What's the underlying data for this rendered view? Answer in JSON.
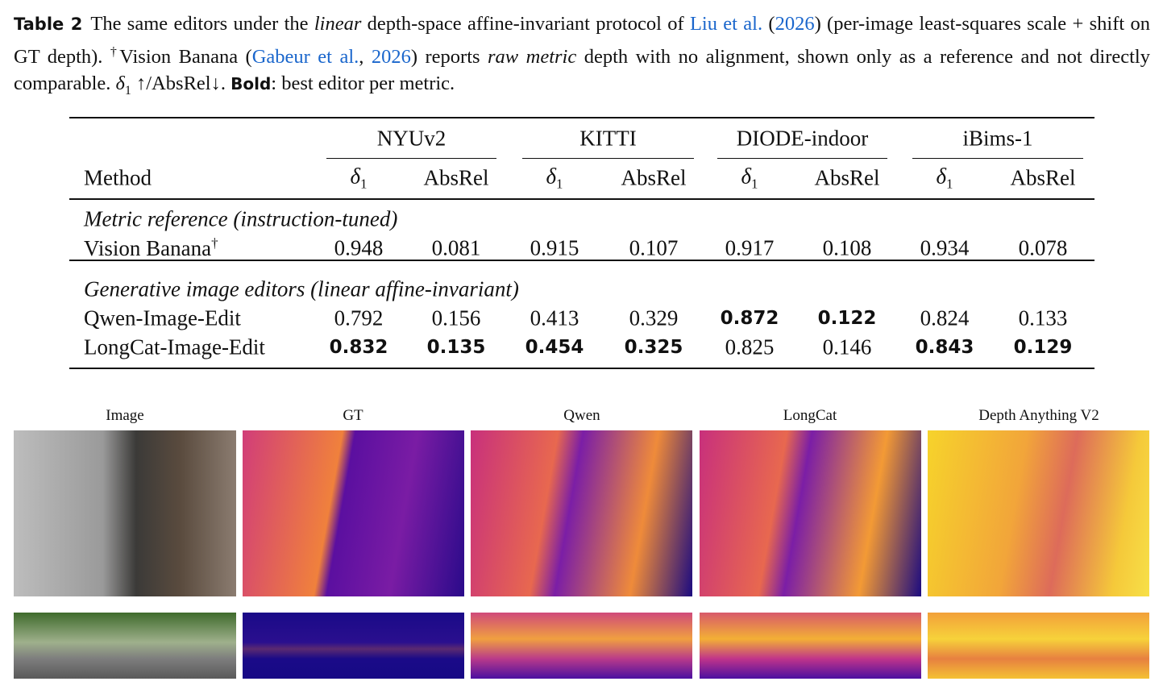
{
  "caption": {
    "label": "Table 2",
    "segments": [
      {
        "text": "The same editors under the ",
        "style": "plain"
      },
      {
        "text": "linear",
        "style": "italic"
      },
      {
        "text": " depth-space affine-invariant protocol of ",
        "style": "plain"
      },
      {
        "text": "Liu et al.",
        "style": "link"
      },
      {
        "text": " (",
        "style": "plain"
      },
      {
        "text": "2026",
        "style": "link"
      },
      {
        "text": ") (per-image least-squares scale + shift on GT depth). ",
        "style": "plain"
      },
      {
        "text": "†",
        "style": "sup"
      },
      {
        "text": "Vision Banana (",
        "style": "plain"
      },
      {
        "text": "Gabeur et al.",
        "style": "link"
      },
      {
        "text": ", ",
        "style": "plain"
      },
      {
        "text": "2026",
        "style": "link"
      },
      {
        "text": ") reports ",
        "style": "plain"
      },
      {
        "text": "raw metric",
        "style": "italic"
      },
      {
        "text": " depth with no alignment, shown only as a reference and not directly comparable. ",
        "style": "plain"
      },
      {
        "text": "δ",
        "style": "italic"
      },
      {
        "text": "1",
        "style": "sub"
      },
      {
        "text": " ↑/AbsRel↓. ",
        "style": "plain"
      },
      {
        "text": "Bold",
        "style": "bold"
      },
      {
        "text": ": best editor per metric.",
        "style": "plain"
      }
    ]
  },
  "table": {
    "method_header": "Method",
    "groups": [
      "NYUv2",
      "KITTI",
      "DIODE-indoor",
      "iBims-1"
    ],
    "columns": [
      {
        "symbol": "δ",
        "sub": "1"
      },
      {
        "symbol": "AbsRel"
      },
      {
        "symbol": "δ",
        "sub": "1"
      },
      {
        "symbol": "AbsRel"
      },
      {
        "symbol": "δ",
        "sub": "1"
      },
      {
        "symbol": "AbsRel"
      },
      {
        "symbol": "δ",
        "sub": "1"
      },
      {
        "symbol": "AbsRel"
      }
    ],
    "sections": [
      {
        "title": "Metric reference (instruction-tuned)",
        "rows": [
          {
            "method": "Vision Banana",
            "mark": "†",
            "values": [
              0.948,
              0.081,
              0.915,
              0.107,
              0.917,
              0.108,
              0.934,
              0.078
            ],
            "bold": []
          }
        ]
      },
      {
        "title": "Generative image editors (linear affine-invariant)",
        "rows": [
          {
            "method": "Qwen-Image-Edit",
            "values": [
              0.792,
              0.156,
              0.413,
              0.329,
              0.872,
              0.122,
              0.824,
              0.133
            ],
            "bold": [
              4,
              5
            ]
          },
          {
            "method": "LongCat-Image-Edit",
            "values": [
              0.832,
              0.135,
              0.454,
              0.325,
              0.825,
              0.146,
              0.843,
              0.129
            ],
            "bold": [
              0,
              1,
              2,
              3,
              6,
              7
            ]
          }
        ]
      }
    ]
  },
  "figure": {
    "column_labels": [
      "Image",
      "GT",
      "Qwen",
      "LongCat",
      "Depth Anything V2"
    ]
  }
}
